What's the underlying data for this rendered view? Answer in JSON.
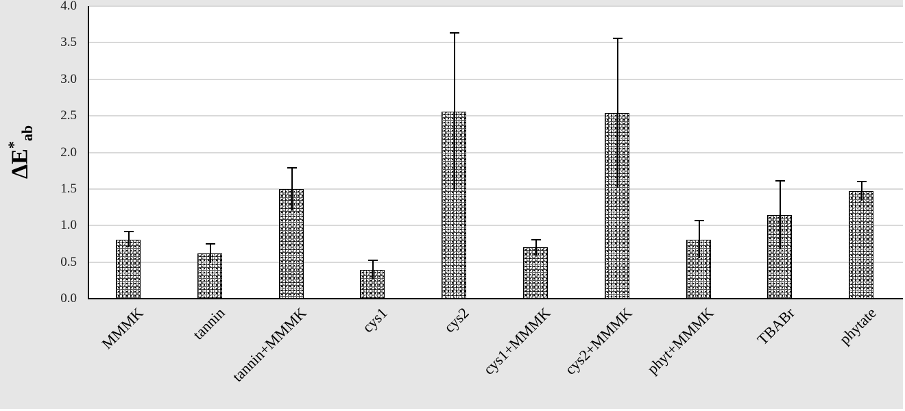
{
  "chart_data": {
    "type": "bar",
    "title": "",
    "xlabel": "",
    "ylabel": "ΔE*ab",
    "ylabel_parts": {
      "main": "ΔE",
      "sup": "*",
      "sub": "ab"
    },
    "ylim": [
      0,
      4.0
    ],
    "yticks": [
      "0.0",
      "0.5",
      "1.0",
      "1.5",
      "2.0",
      "2.5",
      "3.0",
      "3.5",
      "4.0"
    ],
    "grid": true,
    "legend": null,
    "categories": [
      "MMMK",
      "tannin",
      "tannin+MMMK",
      "cys1",
      "cys2",
      "cys1+MMMK",
      "cys2+MMMK",
      "phyt+MMMK",
      "TBABr",
      "phytate"
    ],
    "values": [
      0.81,
      0.62,
      1.5,
      0.39,
      2.56,
      0.7,
      2.54,
      0.81,
      1.14,
      1.47
    ],
    "error_plus": [
      0.11,
      0.13,
      0.29,
      0.13,
      1.07,
      0.11,
      1.02,
      0.26,
      0.47,
      0.13
    ],
    "error_minus": [
      0.11,
      0.13,
      0.29,
      0.13,
      1.07,
      0.11,
      1.02,
      0.26,
      0.47,
      0.13
    ],
    "bar_fill": "crosshatch-pattern",
    "colors": {
      "frame_background": "#e6e6e6",
      "plot_background": "#ffffff",
      "gridline": "#d9d9d9",
      "bar_border": "#000000"
    }
  }
}
